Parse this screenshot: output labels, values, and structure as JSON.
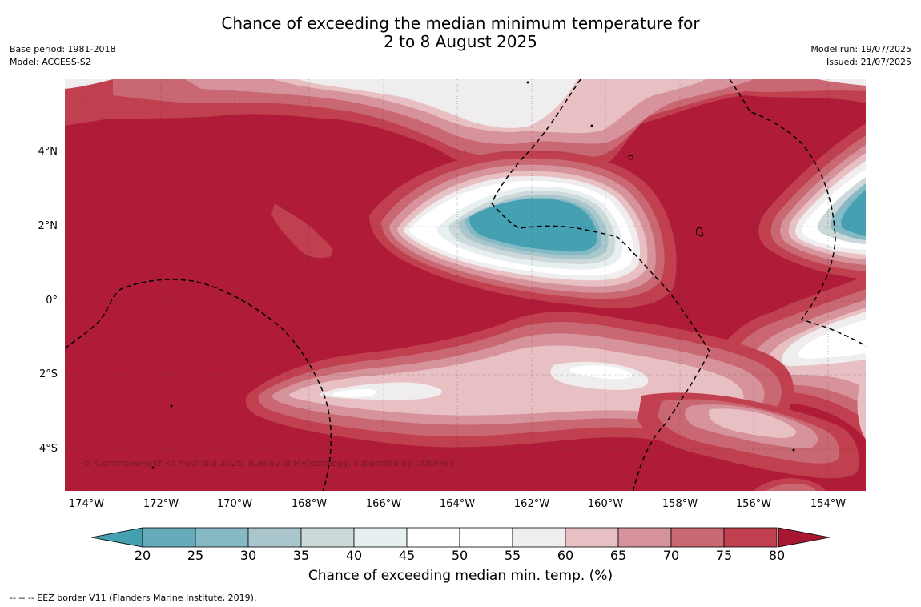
{
  "header": {
    "title_line1": "Chance of exceeding the median minimum temperature for",
    "title_line2": "2 to 8 August 2025",
    "base_period": "Base period: 1981-2018",
    "model": "Model: ACCESS-S2",
    "model_run": "Model run: 19/07/2025",
    "issued": "Issued: 21/07/2025"
  },
  "map": {
    "latitude_labels": [
      "4°N",
      "2°N",
      "0°",
      "2°S",
      "4°S"
    ],
    "longitude_labels": [
      "174°W",
      "172°W",
      "170°W",
      "168°W",
      "166°W",
      "164°W",
      "162°W",
      "160°W",
      "158°W",
      "156°W",
      "154°W"
    ],
    "copyright": "© Commonwealth of Australia 2025, Bureau of Meteorology, supported by COSPPac",
    "colors": {
      "c80": "#b01c38",
      "c75": "#c0404f",
      "c70": "#c96872",
      "c65": "#d7939b",
      "c60": "#e8c0c4",
      "c55": "#efeded",
      "c50": "#ffffff",
      "c40": "#e7eff0",
      "c35": "#cdd8da",
      "c30": "#a9c6cd",
      "c25": "#85b9c4",
      "c20": "#45a0b1"
    }
  },
  "legend": {
    "ticks": [
      "20",
      "25",
      "30",
      "35",
      "40",
      "45",
      "50",
      "55",
      "60",
      "65",
      "70",
      "75",
      "80"
    ],
    "colors": [
      "#66abbb",
      "#85b9c4",
      "#a9c6cd",
      "#cdd8da",
      "#e7eff0",
      "#ffffff",
      "#ffffff",
      "#efeded",
      "#e8c0c4",
      "#d7939b",
      "#c96872",
      "#c0404f"
    ],
    "low_extend_color": "#45a0b1",
    "high_extend_color": "#a81632",
    "title": "Chance of exceeding median min. temp. (%)"
  },
  "footnote": "--  --  -- EEZ border V11 (Flanders Marine Institute, 2019)."
}
